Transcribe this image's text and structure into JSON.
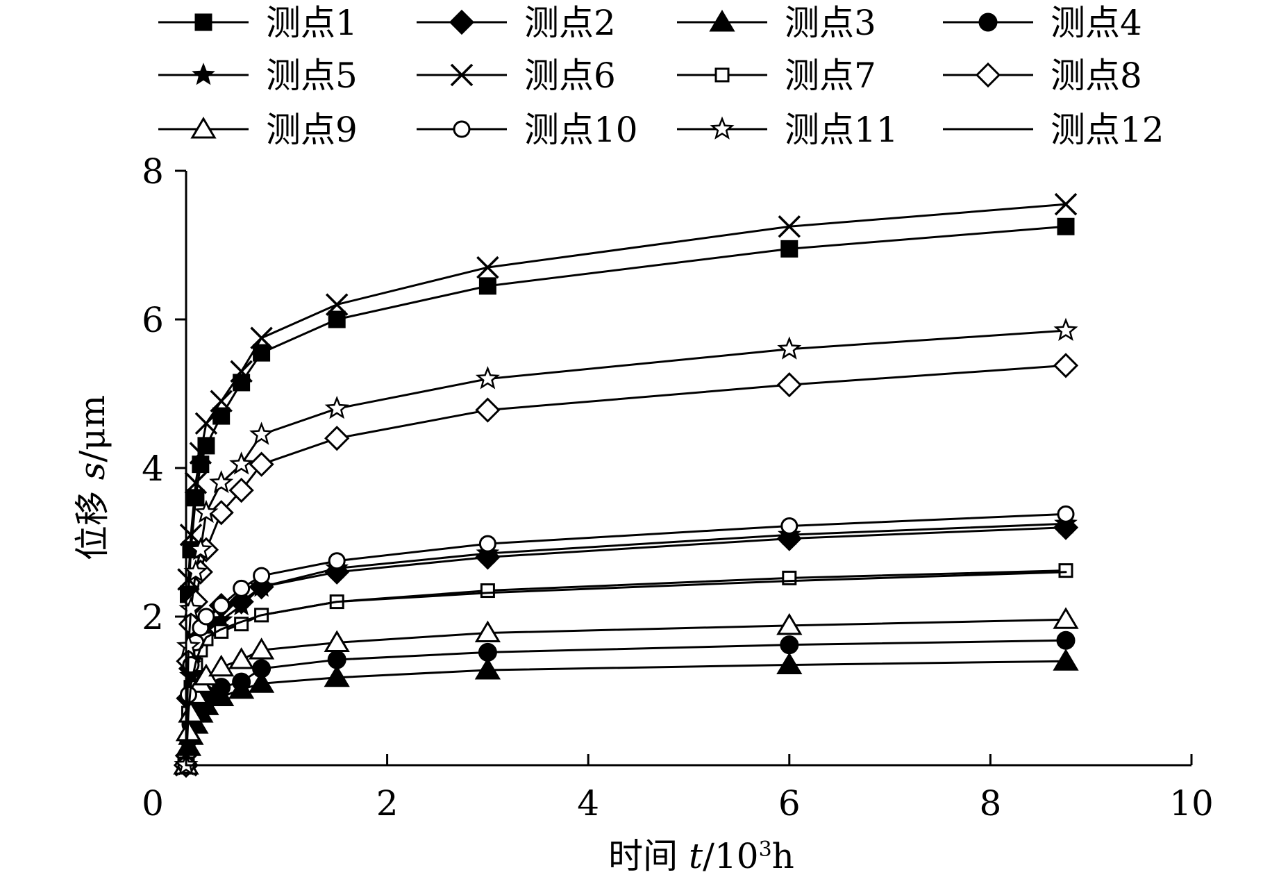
{
  "chart_data": {
    "type": "line",
    "xlabel_parts": {
      "prefix": "时间 ",
      "var": "t",
      "slash": "/10",
      "sup": "3",
      "unit": "h"
    },
    "ylabel_parts": {
      "prefix": "位移 ",
      "var": "s",
      "unit": "/μm"
    },
    "xlim": [
      0,
      10
    ],
    "ylim": [
      0,
      8
    ],
    "x_ticks": [
      0,
      2,
      4,
      6,
      8,
      10
    ],
    "y_ticks": [
      2,
      4,
      6,
      8
    ],
    "grid": false,
    "legend_position": "top",
    "x": [
      0.0,
      0.024,
      0.048,
      0.096,
      0.144,
      0.2,
      0.35,
      0.55,
      0.75,
      1.5,
      3.0,
      6.0,
      8.75
    ],
    "series": [
      {
        "name": "测点1",
        "marker": "square-filled",
        "values": [
          0,
          2.3,
          2.9,
          3.6,
          4.05,
          4.3,
          4.7,
          5.15,
          5.55,
          6.0,
          6.45,
          6.95,
          7.25
        ]
      },
      {
        "name": "测点2",
        "marker": "diamond-filled",
        "values": [
          0,
          0.9,
          1.3,
          1.6,
          1.8,
          1.95,
          2.15,
          2.2,
          2.4,
          2.6,
          2.8,
          3.05,
          3.2
        ]
      },
      {
        "name": "测点3",
        "marker": "triangle-filled",
        "values": [
          0,
          0.25,
          0.4,
          0.55,
          0.7,
          0.8,
          0.92,
          1.02,
          1.1,
          1.18,
          1.28,
          1.35,
          1.4
        ]
      },
      {
        "name": "测点4",
        "marker": "circle-filled",
        "values": [
          0,
          0.35,
          0.55,
          0.75,
          0.88,
          0.95,
          1.05,
          1.12,
          1.3,
          1.42,
          1.52,
          1.62,
          1.68
        ]
      },
      {
        "name": "测点5",
        "marker": "star-filled",
        "values": [
          0,
          0.85,
          1.2,
          1.5,
          1.7,
          1.85,
          1.95,
          2.15,
          2.4,
          2.65,
          2.85,
          3.1,
          3.25
        ]
      },
      {
        "name": "测点6",
        "marker": "x",
        "values": [
          0,
          2.5,
          3.1,
          3.8,
          4.2,
          4.6,
          4.9,
          5.3,
          5.75,
          6.2,
          6.7,
          7.25,
          7.55
        ]
      },
      {
        "name": "测点7",
        "marker": "square-open",
        "values": [
          0,
          0.7,
          1.05,
          1.35,
          1.55,
          1.7,
          1.8,
          1.9,
          2.02,
          2.2,
          2.35,
          2.52,
          2.62
        ]
      },
      {
        "name": "测点8",
        "marker": "diamond-open",
        "values": [
          0,
          1.4,
          1.9,
          2.2,
          2.6,
          2.9,
          3.4,
          3.7,
          4.05,
          4.4,
          4.78,
          5.12,
          5.38
        ]
      },
      {
        "name": "测点9",
        "marker": "triangle-open",
        "values": [
          0,
          0.45,
          0.7,
          0.95,
          1.1,
          1.2,
          1.32,
          1.42,
          1.55,
          1.65,
          1.78,
          1.88,
          1.96
        ]
      },
      {
        "name": "测点10",
        "marker": "circle-open",
        "values": [
          0,
          0.95,
          1.35,
          1.65,
          1.85,
          2.0,
          2.15,
          2.38,
          2.55,
          2.75,
          2.98,
          3.22,
          3.38
        ]
      },
      {
        "name": "测点11",
        "marker": "star-open",
        "values": [
          0,
          1.6,
          2.1,
          2.6,
          2.9,
          3.4,
          3.8,
          4.05,
          4.45,
          4.8,
          5.2,
          5.6,
          5.85
        ]
      },
      {
        "name": "测点12",
        "marker": "none",
        "values": [
          0,
          0.72,
          1.08,
          1.38,
          1.58,
          1.72,
          1.83,
          1.93,
          2.02,
          2.2,
          2.32,
          2.48,
          2.6
        ]
      }
    ]
  }
}
